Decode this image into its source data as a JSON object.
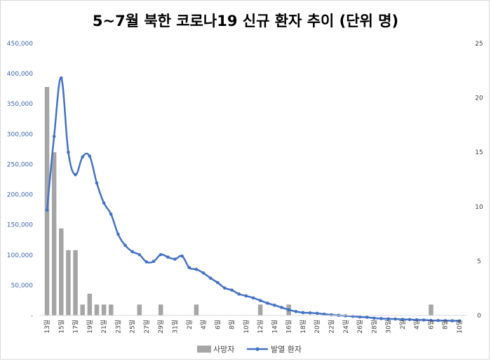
{
  "chart_data": {
    "type": "bar+line",
    "title": "5~7월 북한 코로나19 신규 환자 추이 (단위 명)",
    "categories": [
      "13일",
      "14일",
      "15일",
      "16일",
      "17일",
      "18일",
      "19일",
      "20일",
      "21일",
      "22일",
      "23일",
      "24일",
      "25일",
      "26일",
      "27일",
      "28일",
      "29일",
      "30일",
      "31일",
      "1일",
      "2일",
      "3일",
      "4일",
      "5일",
      "6일",
      "7일",
      "8일",
      "9일",
      "10일",
      "11일",
      "12일",
      "13일",
      "14일",
      "15일",
      "16일",
      "17일",
      "18일",
      "19일",
      "20일",
      "21일",
      "22일",
      "23일",
      "24일",
      "25일",
      "26일",
      "27일",
      "28일",
      "29일",
      "30일",
      "1일",
      "2일",
      "3일",
      "4일",
      "5일",
      "6일",
      "7일",
      "8일",
      "9일",
      "10일"
    ],
    "x_tick_labels": [
      "13일",
      "15일",
      "17일",
      "19일",
      "21일",
      "23일",
      "25일",
      "27일",
      "29일",
      "31일",
      "2일",
      "4일",
      "6일",
      "8일",
      "10일",
      "12일",
      "14일",
      "16일",
      "18일",
      "20일",
      "22일",
      "24일",
      "26일",
      "28일",
      "30일",
      "2일",
      "4일",
      "6일",
      "8일",
      "10일"
    ],
    "series": [
      {
        "name": "사망자",
        "type": "bar",
        "axis": "right",
        "color": "#a5a5a5",
        "values": [
          21,
          15,
          8,
          6,
          6,
          1,
          2,
          1,
          1,
          1,
          0,
          0,
          0,
          1,
          0,
          0,
          1,
          0,
          0,
          0,
          0,
          1,
          0,
          0,
          0,
          0,
          0,
          0,
          0,
          0,
          1,
          0,
          0,
          0,
          1,
          0,
          0,
          0,
          0,
          0,
          0,
          0,
          0,
          0,
          0,
          0,
          0,
          0,
          0,
          0,
          0,
          0,
          0,
          0,
          1,
          0,
          0,
          0,
          0
        ]
      },
      {
        "name": "발열 환자",
        "type": "line",
        "axis": "left",
        "color": "#4472c4",
        "values": [
          174440,
          296180,
          392920,
          270000,
          232880,
          262270,
          263370,
          219030,
          186090,
          167650,
          134510,
          115970,
          105500,
          100460,
          88520,
          89500,
          100600,
          96500,
          93200,
          98200,
          79100,
          76300,
          70100,
          61700,
          54300,
          45300,
          41900,
          35400,
          32400,
          29000,
          24700,
          20300,
          16900,
          13200,
          9300,
          6500,
          4700,
          4200,
          3500,
          2100,
          1000,
          200,
          -600,
          -1500,
          -2500,
          -3000,
          -4500,
          -5200,
          -5700,
          -6000,
          -6500,
          -6800,
          -7300,
          -7600,
          -8200,
          -8400,
          -8600,
          -8800,
          -9000
        ]
      }
    ],
    "y_left": {
      "min": 0,
      "max": 450000,
      "ticks": [
        "-",
        "50,000",
        "100,000",
        "150,000",
        "200,000",
        "250,000",
        "300,000",
        "350,000",
        "400,000",
        "450,000"
      ]
    },
    "y_right": {
      "min": 0,
      "max": 25,
      "ticks": [
        "0",
        "5",
        "10",
        "15",
        "20",
        "25"
      ]
    },
    "grid": false,
    "legend_position": "bottom"
  }
}
